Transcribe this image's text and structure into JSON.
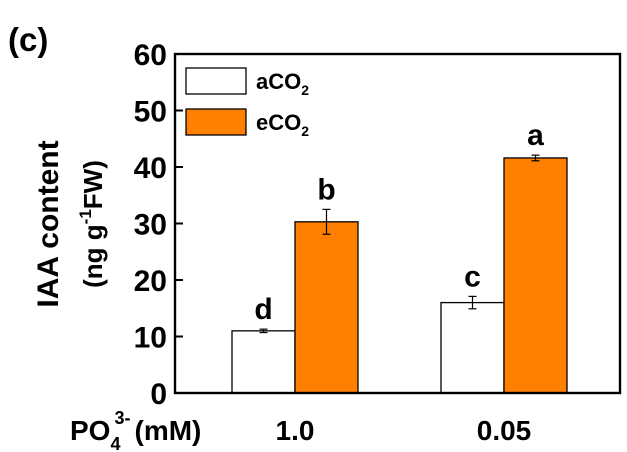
{
  "panel_label": "(c)",
  "chart_data": {
    "type": "bar",
    "categories": [
      "1.0",
      "0.05"
    ],
    "xlabel": {
      "main": "PO",
      "sub": "4",
      "sup": "3-",
      "unit": "(mM)"
    },
    "ylabel": {
      "line1": "IAA content",
      "line2_open": "(ng g",
      "line2_sup": "-1",
      "line2_close": "FW)"
    },
    "ylim": [
      0,
      60
    ],
    "yticks": [
      "0",
      "10",
      "20",
      "30",
      "40",
      "50",
      "60"
    ],
    "series": [
      {
        "name": "aCO2",
        "legend_main": "aCO",
        "legend_sub": "2",
        "color": "#ffffff",
        "values": [
          11,
          16
        ],
        "errors": [
          0.3,
          1.1
        ],
        "letters": [
          "d",
          "c"
        ]
      },
      {
        "name": "eCO2",
        "legend_main": "eCO",
        "legend_sub": "2",
        "color": "#ff7f00",
        "values": [
          30.3,
          41.6
        ],
        "errors": [
          2.2,
          0.5
        ],
        "letters": [
          "b",
          "a"
        ]
      }
    ],
    "legend_position": "top-left",
    "grid": false
  }
}
